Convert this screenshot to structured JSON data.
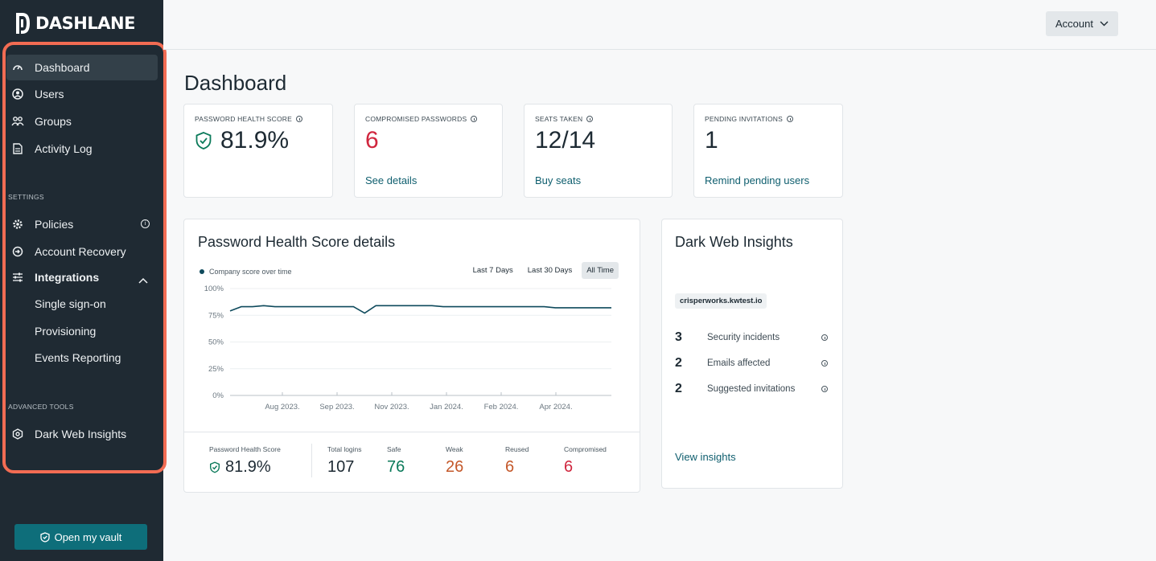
{
  "brand": {
    "name": "DASHLANE",
    "accent": "#0e6e7a",
    "highlight_color": "#f26c53"
  },
  "sidebar": {
    "main_items": [
      {
        "label": "Dashboard",
        "icon": "dashboard-gauge-icon",
        "active": true
      },
      {
        "label": "Users",
        "icon": "user-circle-icon"
      },
      {
        "label": "Groups",
        "icon": "group-icon"
      },
      {
        "label": "Activity Log",
        "icon": "document-icon"
      }
    ],
    "settings_label": "SETTINGS",
    "settings_items": [
      {
        "label": "Policies",
        "icon": "gear-icon"
      },
      {
        "label": "Account Recovery",
        "icon": "account-recovery-icon"
      },
      {
        "label": "Integrations",
        "icon": "sliders-icon"
      }
    ],
    "integrations_sub": [
      {
        "label": "Single sign-on"
      },
      {
        "label": "Provisioning"
      },
      {
        "label": "Events Reporting"
      }
    ],
    "advanced_label": "ADVANCED TOOLS",
    "advanced_items": [
      {
        "label": "Dark Web Insights",
        "icon": "dark-web-icon"
      }
    ],
    "vault_button": "Open my vault"
  },
  "header": {
    "account_label": "Account"
  },
  "page": {
    "title": "Dashboard"
  },
  "stats": [
    {
      "label": "PASSWORD HEALTH SCORE",
      "value": "81.9%",
      "link": ""
    },
    {
      "label": "COMPROMISED PASSWORDS",
      "value": "6",
      "link": "See details"
    },
    {
      "label": "SEATS TAKEN",
      "value": "12/14",
      "link": "Buy seats"
    },
    {
      "label": "PENDING INVITATIONS",
      "value": "1",
      "link": "Remind pending users"
    }
  ],
  "health": {
    "title": "Password Health Score details",
    "legend": "Company score over time",
    "ranges": [
      "Last 7 Days",
      "Last 30 Days",
      "All Time"
    ],
    "active_range": "All Time",
    "footer": {
      "score_label": "Password Health Score",
      "score_value": "81.9%",
      "metrics": [
        {
          "label": "Total logins",
          "value": "107",
          "color": "#1d2a33"
        },
        {
          "label": "Safe",
          "value": "76",
          "color": "#0b7a5a"
        },
        {
          "label": "Weak",
          "value": "26",
          "color": "#c4582a"
        },
        {
          "label": "Reused",
          "value": "6",
          "color": "#c4582a"
        },
        {
          "label": "Compromised",
          "value": "6",
          "color": "#d0263e"
        }
      ]
    }
  },
  "chart_data": {
    "type": "line",
    "yticks": [
      "100%",
      "75%",
      "50%",
      "25%",
      "0%"
    ],
    "ylim": [
      0,
      100
    ],
    "xticks": [
      "Aug 2023.",
      "Sep 2023.",
      "Nov 2023.",
      "Jan 2024.",
      "Feb 2024.",
      "Apr 2024."
    ],
    "series": [
      {
        "name": "Company score over time",
        "color": "#0e4a5c",
        "values": [
          79,
          83,
          83,
          84,
          83,
          83,
          83,
          83,
          83,
          83,
          83,
          83,
          77,
          84,
          84,
          84,
          84,
          84,
          84,
          83,
          83,
          83,
          83,
          83,
          83,
          83,
          83,
          83,
          83,
          82,
          82,
          82,
          82,
          82,
          82
        ]
      }
    ]
  },
  "dark_web": {
    "title": "Dark Web Insights",
    "domain": "crisperworks.kwtest.io",
    "rows": [
      {
        "num": "3",
        "label": "Security incidents"
      },
      {
        "num": "2",
        "label": "Emails affected"
      },
      {
        "num": "2",
        "label": "Suggested invitations"
      }
    ],
    "link": "View insights"
  }
}
